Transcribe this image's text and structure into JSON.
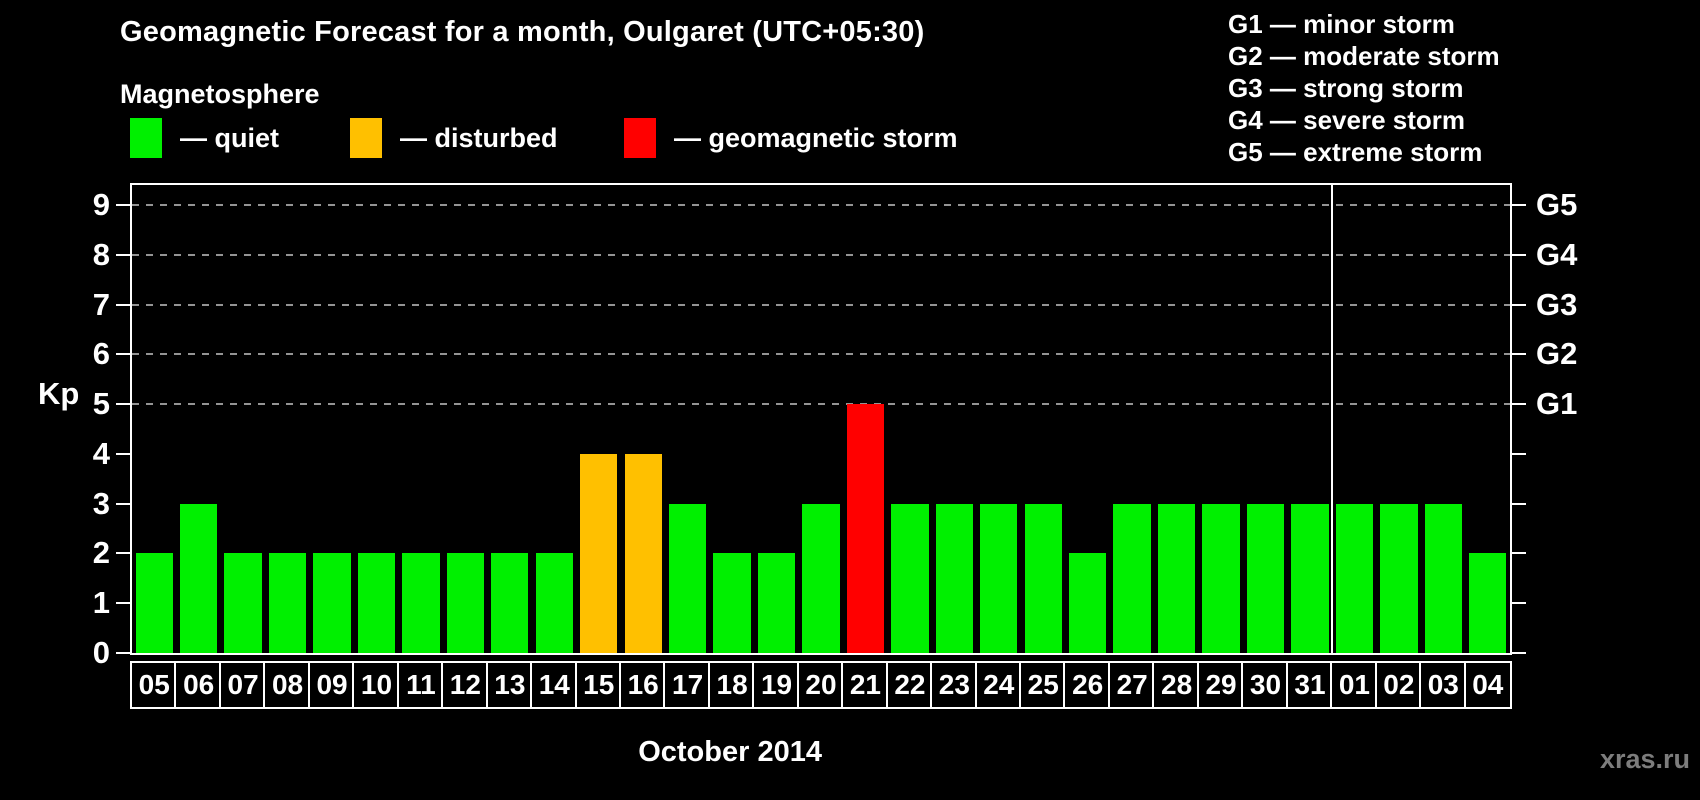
{
  "title": "Geomagnetic Forecast for a month, Oulgaret (UTC+05:30)",
  "legend": {
    "heading": "Magnetosphere",
    "items": [
      {
        "key": "quiet",
        "label": "— quiet",
        "color": "#00f000"
      },
      {
        "key": "disturbed",
        "label": "— disturbed",
        "color": "#ffc000"
      },
      {
        "key": "storm",
        "label": "— geomagnetic storm",
        "color": "#ff0000"
      }
    ]
  },
  "g_legend": [
    "G1 — minor storm",
    "G2 — moderate storm",
    "G3 — strong storm",
    "G4 — severe storm",
    "G5 — extreme storm"
  ],
  "axes": {
    "y_label": "Kp",
    "y_ticks": [
      0,
      1,
      2,
      3,
      4,
      5,
      6,
      7,
      8,
      9
    ],
    "grid_levels": [
      5,
      6,
      7,
      8,
      9
    ],
    "right_g_labels": [
      {
        "label": "G5",
        "kp": 9
      },
      {
        "label": "G4",
        "kp": 8
      },
      {
        "label": "G3",
        "kp": 7
      },
      {
        "label": "G2",
        "kp": 6
      },
      {
        "label": "G1",
        "kp": 5
      }
    ],
    "x_label": "October 2014"
  },
  "watermark": "xras.ru",
  "chart_data": {
    "type": "bar",
    "title": "Geomagnetic Forecast for a month, Oulgaret (UTC+05:30)",
    "xlabel": "October 2014",
    "ylabel": "Kp",
    "ylim": [
      0,
      9
    ],
    "grid": "dashed horizontal at Kp 5-9 only",
    "legend_position": "top",
    "categories": [
      "05",
      "06",
      "07",
      "08",
      "09",
      "10",
      "11",
      "12",
      "13",
      "14",
      "15",
      "16",
      "17",
      "18",
      "19",
      "20",
      "21",
      "22",
      "23",
      "24",
      "25",
      "26",
      "27",
      "28",
      "29",
      "30",
      "31",
      "01",
      "02",
      "03",
      "04"
    ],
    "values": [
      2,
      3,
      2,
      2,
      2,
      2,
      2,
      2,
      2,
      2,
      4,
      4,
      3,
      2,
      2,
      3,
      5,
      3,
      3,
      3,
      3,
      2,
      3,
      3,
      3,
      3,
      3,
      3,
      3,
      3,
      2
    ],
    "status": [
      "quiet",
      "quiet",
      "quiet",
      "quiet",
      "quiet",
      "quiet",
      "quiet",
      "quiet",
      "quiet",
      "quiet",
      "disturbed",
      "disturbed",
      "quiet",
      "quiet",
      "quiet",
      "quiet",
      "storm",
      "quiet",
      "quiet",
      "quiet",
      "quiet",
      "quiet",
      "quiet",
      "quiet",
      "quiet",
      "quiet",
      "quiet",
      "quiet",
      "quiet",
      "quiet",
      "quiet"
    ],
    "month_boundary_index": 27,
    "colors": {
      "quiet": "#00f000",
      "disturbed": "#ffc000",
      "storm": "#ff0000"
    }
  }
}
